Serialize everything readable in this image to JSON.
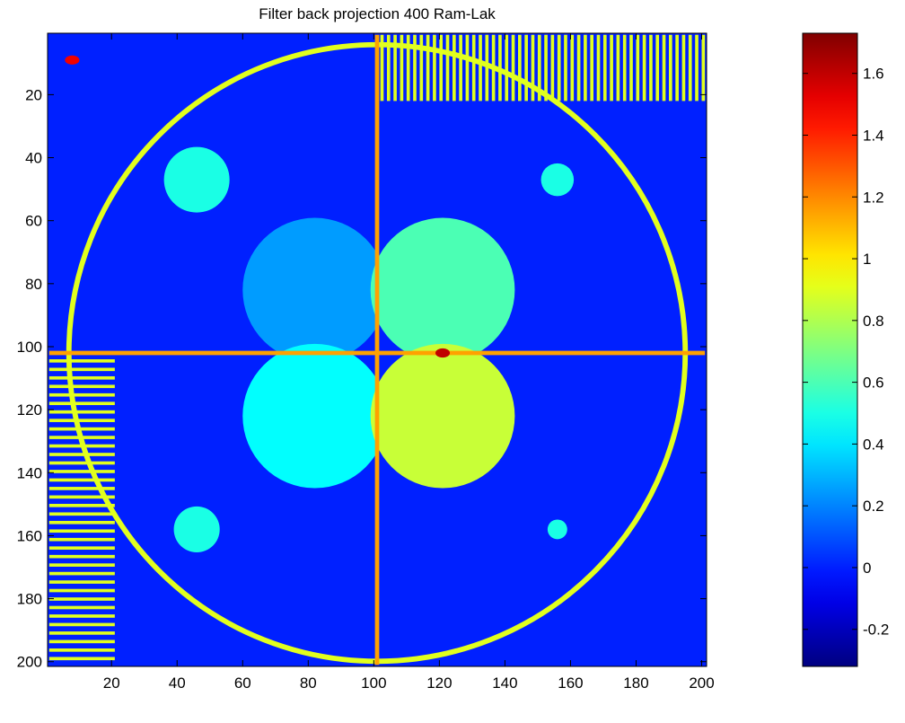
{
  "chart_data": [
    {
      "type": "heatmap",
      "title": "Filter back projection 400 Ram-Lak",
      "xlabel": "",
      "ylabel": "",
      "xlim": [
        0.5,
        201.5
      ],
      "ylim": [
        0.5,
        201.5
      ],
      "y_reversed": true,
      "xticks": [
        20,
        40,
        60,
        80,
        100,
        120,
        140,
        160,
        180,
        200
      ],
      "yticks": [
        20,
        40,
        60,
        80,
        100,
        120,
        140,
        160,
        180,
        200
      ],
      "colormap": "jet",
      "background_value": 0,
      "features": [
        {
          "shape": "ring",
          "cx": 101,
          "cy": 102,
          "r": 94,
          "value": 0.9
        },
        {
          "shape": "disk",
          "cx": 46,
          "cy": 47,
          "r": 10,
          "value": 0.5
        },
        {
          "shape": "disk",
          "cx": 156,
          "cy": 47,
          "r": 5,
          "value": 0.5
        },
        {
          "shape": "disk",
          "cx": 46,
          "cy": 158,
          "r": 7,
          "value": 0.5
        },
        {
          "shape": "disk",
          "cx": 156,
          "cy": 158,
          "r": 3,
          "value": 0.5
        },
        {
          "shape": "disk",
          "cx": 82,
          "cy": 82,
          "r": 22,
          "value": 0.25
        },
        {
          "shape": "disk",
          "cx": 121,
          "cy": 82,
          "r": 22,
          "value": 0.6
        },
        {
          "shape": "disk",
          "cx": 82,
          "cy": 122,
          "r": 22,
          "value": 0.45
        },
        {
          "shape": "disk",
          "cx": 121,
          "cy": 122,
          "r": 22,
          "value": 0.85
        },
        {
          "shape": "hline",
          "y": 102,
          "x0": 1,
          "x1": 201,
          "value": 1.15
        },
        {
          "shape": "vline",
          "x": 101,
          "y0": 1,
          "y1": 201,
          "value": 1.15
        },
        {
          "shape": "spot",
          "cx": 8,
          "cy": 9,
          "value": 1.5
        },
        {
          "shape": "spot",
          "cx": 121,
          "cy": 102,
          "value": 1.6
        },
        {
          "shape": "stripes",
          "x0": 102,
          "x1": 201,
          "y0": 1,
          "y1": 22,
          "direction": "vertical",
          "value": 0.9
        },
        {
          "shape": "stripes",
          "x0": 1,
          "x1": 21,
          "y0": 104,
          "y1": 201,
          "direction": "horizontal",
          "value": 0.9
        }
      ]
    },
    {
      "type": "colorbar",
      "clim": [
        -0.32,
        1.73
      ],
      "ticks": [
        -0.2,
        0,
        0.2,
        0.4,
        0.6,
        0.8,
        1,
        1.2,
        1.4,
        1.6
      ],
      "tick_labels": [
        "-0.2",
        "0",
        "0.2",
        "0.4",
        "0.6",
        "0.8",
        "1",
        "1.2",
        "1.4",
        "1.6"
      ],
      "colormap": "jet"
    }
  ]
}
